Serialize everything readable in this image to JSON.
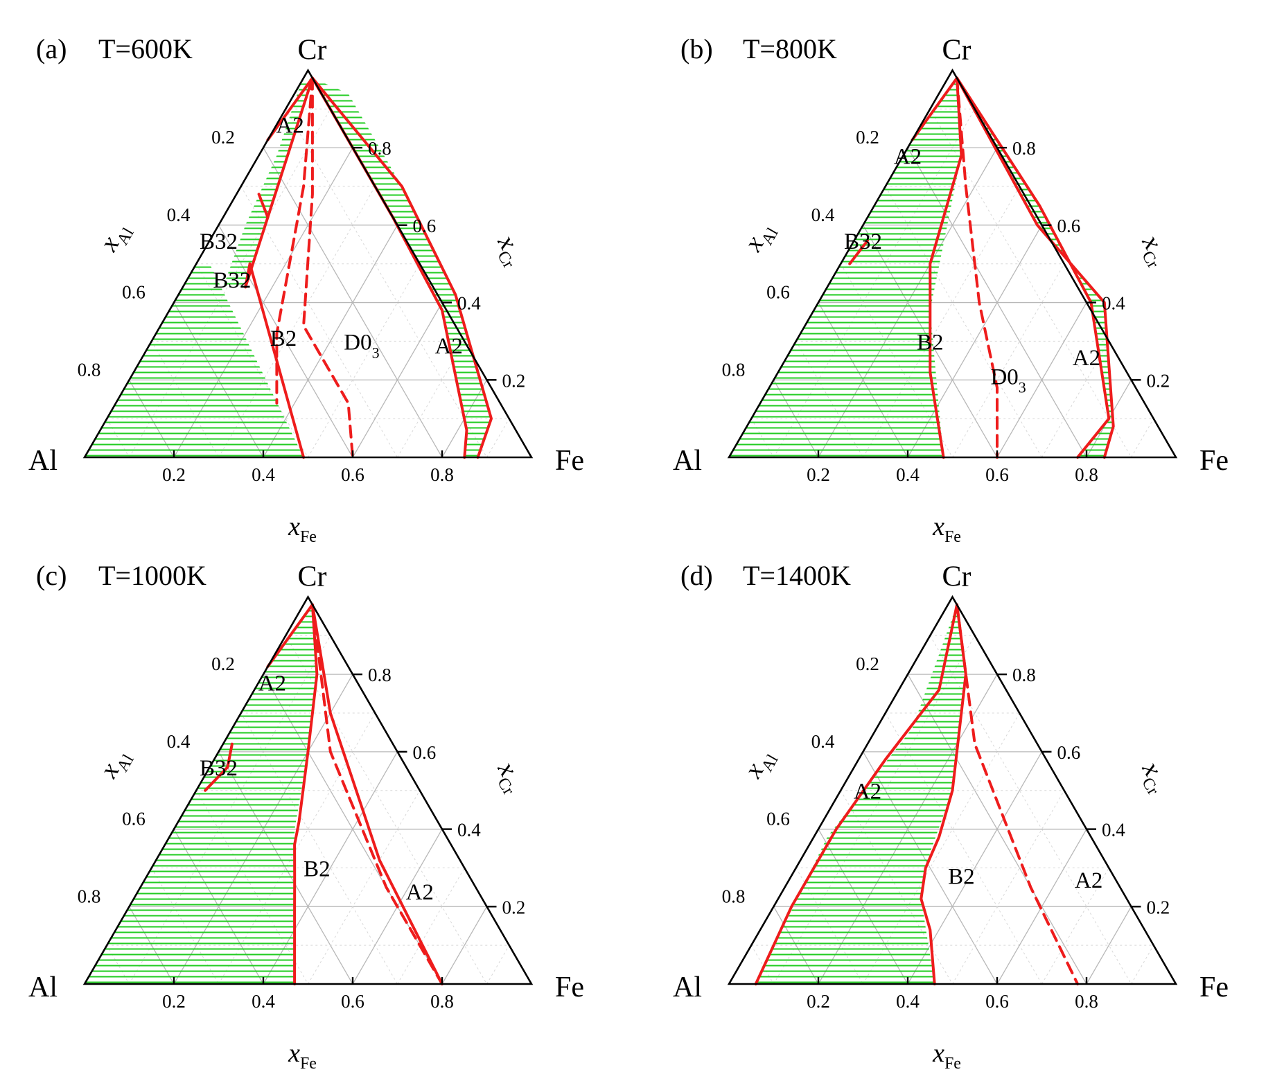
{
  "chart_data": [
    {
      "type": "ternary-phase-diagram",
      "panel": "(a)",
      "temperature": "T=600K",
      "vertices": {
        "top": "Cr",
        "left": "Al",
        "right": "Fe"
      },
      "axes": {
        "bottom": "x_Fe",
        "left": "x_Al",
        "right": "x_Cr"
      },
      "axis_labels": {
        "bottom_main": "x",
        "bottom_sub": "Fe",
        "left_main": "x",
        "left_sub": "Al",
        "right_main": "x",
        "right_sub": "Cr"
      },
      "ticks": [
        "0.2",
        "0.4",
        "0.6",
        "0.8"
      ],
      "tick_values": [
        0.2,
        0.4,
        0.6,
        0.8
      ],
      "grid": true,
      "regions": [
        {
          "label": "A2",
          "x_fe": 0.03,
          "x_cr": 0.86
        },
        {
          "label": "B32",
          "x_fe": 0.02,
          "x_cr": 0.56
        },
        {
          "label": "B32",
          "x_fe": 0.1,
          "x_cr": 0.46
        },
        {
          "label": "B2",
          "x_fe": 0.29,
          "x_cr": 0.31
        },
        {
          "label": "D0",
          "sub": "3",
          "x_fe": 0.47,
          "x_cr": 0.3
        },
        {
          "label": "A2",
          "x_fe": 0.67,
          "x_cr": 0.29
        }
      ],
      "two_phase_areas": [
        [
          [
            0.0,
            0.0
          ],
          [
            0.49,
            0.0
          ],
          [
            0.03,
            0.5
          ],
          [
            0.0,
            0.5
          ]
        ],
        [
          [
            0.04,
            0.78
          ],
          [
            0.0,
            0.97
          ],
          [
            0.02,
            0.98
          ],
          [
            0.06,
            0.8
          ],
          [
            0.1,
            0.62
          ],
          [
            0.14,
            0.44
          ],
          [
            0.09,
            0.44
          ],
          [
            0.06,
            0.6
          ]
        ],
        [
          [
            0.12,
            0.94
          ],
          [
            0.02,
            0.98
          ],
          [
            0.38,
            0.62
          ],
          [
            0.61,
            0.38
          ],
          [
            0.82,
            0.07
          ],
          [
            0.85,
            0.0
          ],
          [
            0.88,
            0.0
          ],
          [
            0.86,
            0.1
          ],
          [
            0.62,
            0.42
          ],
          [
            0.36,
            0.7
          ]
        ]
      ],
      "boundaries_solid": [
        [
          [
            0.49,
            0.0
          ],
          [
            0.12,
            0.5
          ]
        ],
        [
          [
            0.12,
            0.5
          ],
          [
            0.14,
            0.44
          ]
        ],
        [
          [
            0.14,
            0.44
          ],
          [
            0.02,
            0.98
          ]
        ],
        [
          [
            0.0,
            0.82
          ],
          [
            0.02,
            0.98
          ]
        ],
        [
          [
            0.1,
            0.62
          ],
          [
            0.05,
            0.68
          ]
        ],
        [
          [
            0.02,
            0.98
          ],
          [
            0.38,
            0.62
          ],
          [
            0.61,
            0.38
          ],
          [
            0.82,
            0.07
          ],
          [
            0.85,
            0.0
          ]
        ],
        [
          [
            0.02,
            0.98
          ],
          [
            0.36,
            0.7
          ],
          [
            0.62,
            0.42
          ],
          [
            0.86,
            0.1
          ],
          [
            0.88,
            0.0
          ]
        ]
      ],
      "boundaries_dashed": [
        [
          [
            0.02,
            0.98
          ],
          [
            0.14,
            0.7
          ],
          [
            0.27,
            0.32
          ],
          [
            0.36,
            0.14
          ]
        ],
        [
          [
            0.02,
            0.98
          ],
          [
            0.17,
            0.68
          ],
          [
            0.32,
            0.34
          ],
          [
            0.52,
            0.14
          ],
          [
            0.6,
            0.0
          ]
        ]
      ]
    },
    {
      "type": "ternary-phase-diagram",
      "panel": "(b)",
      "temperature": "T=800K",
      "vertices": {
        "top": "Cr",
        "left": "Al",
        "right": "Fe"
      },
      "axes": {
        "bottom": "x_Fe",
        "left": "x_Al",
        "right": "x_Cr"
      },
      "axis_labels": {
        "bottom_main": "x",
        "bottom_sub": "Fe",
        "left_main": "x",
        "left_sub": "Al",
        "right_main": "x",
        "right_sub": "Cr"
      },
      "ticks": [
        "0.2",
        "0.4",
        "0.6",
        "0.8"
      ],
      "tick_values": [
        0.2,
        0.4,
        0.6,
        0.8
      ],
      "grid": true,
      "regions": [
        {
          "label": "A2",
          "x_fe": 0.01,
          "x_cr": 0.78
        },
        {
          "label": "B32",
          "x_fe": 0.02,
          "x_cr": 0.56
        },
        {
          "label": "B2",
          "x_fe": 0.3,
          "x_cr": 0.3
        },
        {
          "label": "D0",
          "sub": "3",
          "x_fe": 0.52,
          "x_cr": 0.21
        },
        {
          "label": "A2",
          "x_fe": 0.67,
          "x_cr": 0.26
        }
      ],
      "two_phase_areas": [
        [
          [
            0.0,
            0.0
          ],
          [
            0.48,
            0.0
          ],
          [
            0.26,
            0.38
          ],
          [
            0.13,
            0.78
          ],
          [
            0.02,
            0.98
          ],
          [
            0.0,
            0.8
          ]
        ],
        [
          [
            0.02,
            0.98
          ],
          [
            0.39,
            0.6
          ],
          [
            0.64,
            0.4
          ],
          [
            0.82,
            0.08
          ],
          [
            0.84,
            0.0
          ],
          [
            0.78,
            0.0
          ],
          [
            0.8,
            0.1
          ],
          [
            0.61,
            0.4
          ],
          [
            0.37,
            0.65
          ]
        ]
      ],
      "boundaries_solid": [
        [
          [
            0.48,
            0.0
          ],
          [
            0.34,
            0.22
          ],
          [
            0.26,
            0.38
          ],
          [
            0.2,
            0.5
          ],
          [
            0.13,
            0.78
          ],
          [
            0.02,
            0.98
          ]
        ],
        [
          [
            0.0,
            0.82
          ],
          [
            0.02,
            0.98
          ]
        ],
        [
          [
            0.03,
            0.56
          ],
          [
            0.02,
            0.5
          ]
        ],
        [
          [
            0.02,
            0.98
          ],
          [
            0.39,
            0.6
          ],
          [
            0.64,
            0.4
          ],
          [
            0.82,
            0.08
          ],
          [
            0.84,
            0.0
          ]
        ],
        [
          [
            0.02,
            0.98
          ],
          [
            0.37,
            0.65
          ],
          [
            0.61,
            0.4
          ],
          [
            0.8,
            0.1
          ],
          [
            0.78,
            0.0
          ]
        ]
      ],
      "boundaries_dashed": [
        [
          [
            0.02,
            0.98
          ],
          [
            0.18,
            0.7
          ],
          [
            0.36,
            0.4
          ],
          [
            0.51,
            0.18
          ],
          [
            0.6,
            0.0
          ]
        ]
      ]
    },
    {
      "type": "ternary-phase-diagram",
      "panel": "(c)",
      "temperature": "T=1000K",
      "vertices": {
        "top": "Cr",
        "left": "Al",
        "right": "Fe"
      },
      "axes": {
        "bottom": "x_Fe",
        "left": "x_Al",
        "right": "x_Cr"
      },
      "axis_labels": {
        "bottom_main": "x",
        "bottom_sub": "Fe",
        "left_main": "x",
        "left_sub": "Al",
        "right_main": "x",
        "right_sub": "Cr"
      },
      "ticks": [
        "0.2",
        "0.4",
        "0.6",
        "0.8"
      ],
      "tick_values": [
        0.2,
        0.4,
        0.6,
        0.8
      ],
      "grid": true,
      "regions": [
        {
          "label": "A2",
          "x_fe": 0.03,
          "x_cr": 0.78
        },
        {
          "label": "B32",
          "x_fe": 0.02,
          "x_cr": 0.56
        },
        {
          "label": "B2",
          "x_fe": 0.37,
          "x_cr": 0.3
        },
        {
          "label": "A2",
          "x_fe": 0.63,
          "x_cr": 0.24
        }
      ],
      "two_phase_areas": [
        [
          [
            0.0,
            0.0
          ],
          [
            0.47,
            0.0
          ],
          [
            0.33,
            0.28
          ],
          [
            0.27,
            0.4
          ],
          [
            0.2,
            0.6
          ],
          [
            0.12,
            0.8
          ],
          [
            0.02,
            0.98
          ],
          [
            0.0,
            0.8
          ]
        ]
      ],
      "boundaries_solid": [
        [
          [
            0.47,
            0.0
          ],
          [
            0.38,
            0.18
          ],
          [
            0.33,
            0.28
          ],
          [
            0.29,
            0.36
          ],
          [
            0.27,
            0.42
          ],
          [
            0.2,
            0.6
          ],
          [
            0.12,
            0.8
          ],
          [
            0.02,
            0.98
          ]
        ],
        [
          [
            0.0,
            0.82
          ],
          [
            0.02,
            0.98
          ]
        ],
        [
          [
            0.02,
            0.62
          ],
          [
            0.04,
            0.56
          ],
          [
            0.02,
            0.5
          ]
        ],
        [
          [
            0.02,
            0.98
          ],
          [
            0.2,
            0.7
          ],
          [
            0.5,
            0.32
          ],
          [
            0.8,
            0.0
          ]
        ]
      ],
      "boundaries_dashed": [
        [
          [
            0.02,
            0.98
          ],
          [
            0.25,
            0.6
          ],
          [
            0.55,
            0.25
          ],
          [
            0.8,
            0.0
          ]
        ]
      ]
    },
    {
      "type": "ternary-phase-diagram",
      "panel": "(d)",
      "temperature": "T=1400K",
      "vertices": {
        "top": "Cr",
        "left": "Al",
        "right": "Fe"
      },
      "axes": {
        "bottom": "x_Fe",
        "left": "x_Al",
        "right": "x_Cr"
      },
      "axis_labels": {
        "bottom_main": "x",
        "bottom_sub": "Fe",
        "left_main": "x",
        "left_sub": "Al",
        "right_main": "x",
        "right_sub": "Cr"
      },
      "ticks": [
        "0.2",
        "0.4",
        "0.6",
        "0.8"
      ],
      "tick_values": [
        0.2,
        0.4,
        0.6,
        0.8
      ],
      "grid": true,
      "regions": [
        {
          "label": "A2",
          "x_fe": 0.06,
          "x_cr": 0.5
        },
        {
          "label": "B2",
          "x_fe": 0.38,
          "x_cr": 0.28
        },
        {
          "label": "A2",
          "x_fe": 0.67,
          "x_cr": 0.27
        }
      ],
      "two_phase_areas": [
        [
          [
            0.06,
            0.0
          ],
          [
            0.46,
            0.0
          ],
          [
            0.32,
            0.22
          ],
          [
            0.28,
            0.34
          ],
          [
            0.25,
            0.5
          ],
          [
            0.13,
            0.8
          ],
          [
            0.02,
            0.98
          ],
          [
            0.08,
            0.66
          ],
          [
            0.03,
            0.38
          ]
        ]
      ],
      "boundaries_solid": [
        [
          [
            0.06,
            0.0
          ],
          [
            0.04,
            0.2
          ],
          [
            0.04,
            0.4
          ],
          [
            0.06,
            0.58
          ],
          [
            0.09,
            0.76
          ],
          [
            0.02,
            0.98
          ]
        ],
        [
          [
            0.46,
            0.0
          ],
          [
            0.38,
            0.14
          ],
          [
            0.32,
            0.22
          ],
          [
            0.29,
            0.3
          ],
          [
            0.28,
            0.38
          ],
          [
            0.25,
            0.5
          ],
          [
            0.13,
            0.8
          ],
          [
            0.02,
            0.98
          ]
        ]
      ],
      "boundaries_dashed": [
        [
          [
            0.02,
            0.98
          ],
          [
            0.24,
            0.62
          ],
          [
            0.55,
            0.25
          ],
          [
            0.78,
            0.0
          ]
        ]
      ]
    }
  ],
  "colors": {
    "boundary": "#ee1c1c",
    "two_phase_hatch": "#22cc22",
    "grid": "#b8b8b8",
    "frame": "#000000"
  }
}
